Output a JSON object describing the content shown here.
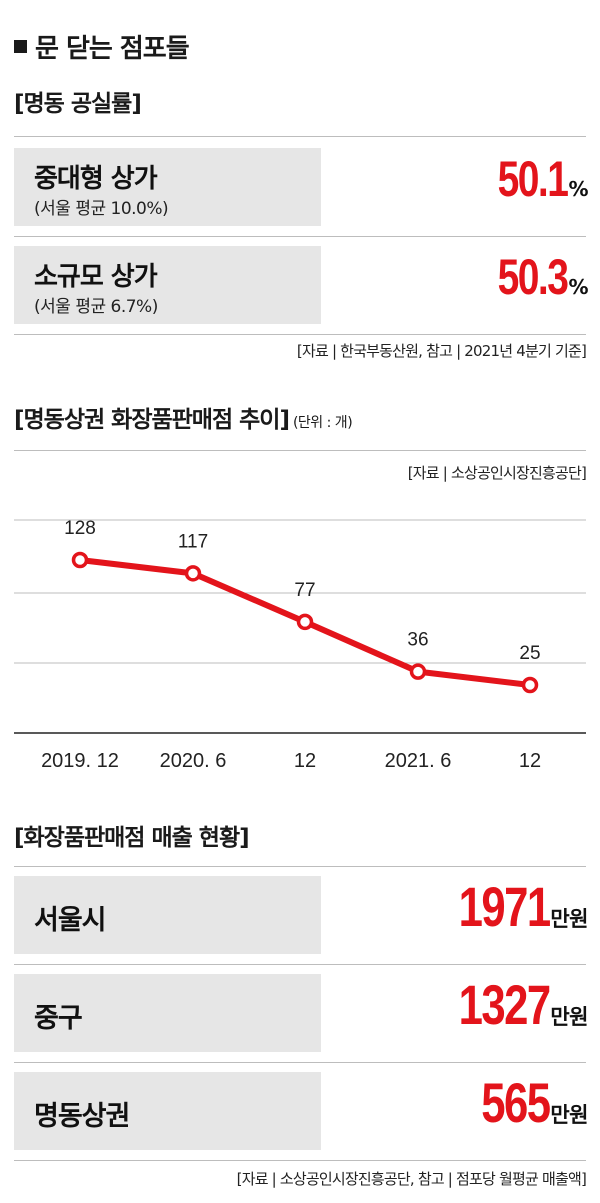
{
  "main_title": "문 닫는 점포들",
  "vacancy": {
    "title": "[명동 공실률]",
    "rows": [
      {
        "label": "중대형 상가",
        "sub": "(서울 평균 10.0%)",
        "value": "50.1",
        "unit": "%"
      },
      {
        "label": "소규모 상가",
        "sub": "(서울 평균 6.7%)",
        "value": "50.3",
        "unit": "%"
      }
    ],
    "source": "[자료 | 한국부동산원, 참고 | 2021년 4분기 기준]"
  },
  "chart": {
    "title": "[명동상권 화장품판매점 추이]",
    "unit": "(단위 : 개)",
    "source": "[자료 | 소상공인시장진흥공단]"
  },
  "chart_data": {
    "type": "line",
    "title": "[명동상권 화장품판매점 추이]",
    "unit": "(단위 : 개)",
    "categories": [
      "2019. 12",
      "2020. 6",
      "12",
      "2021. 6",
      "12"
    ],
    "values": [
      128,
      117,
      77,
      36,
      25
    ],
    "color": "#e3141b",
    "grid": true
  },
  "sales": {
    "title": "[화장품판매점 매출 현황]",
    "rows": [
      {
        "label": "서울시",
        "value": "1971",
        "unit": "만원"
      },
      {
        "label": "중구",
        "value": "1327",
        "unit": "만원"
      },
      {
        "label": "명동상권",
        "value": "565",
        "unit": "만원"
      }
    ],
    "source": "[자료 | 소상공인시장진흥공단, 참고 | 점포당 월평균 매출액]"
  }
}
